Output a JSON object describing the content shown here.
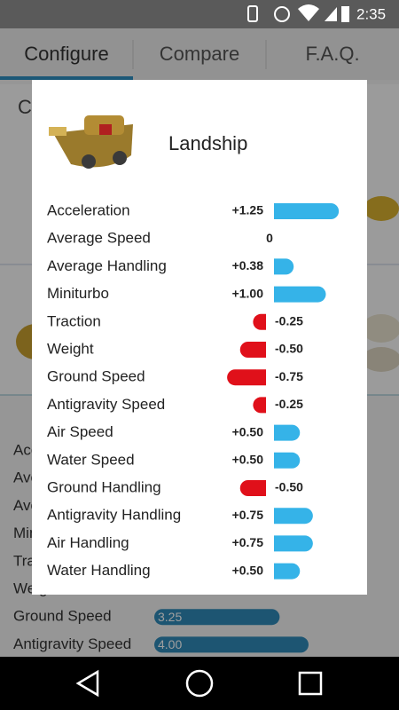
{
  "status_bar": {
    "time": "2:35"
  },
  "tabs": [
    "Configure",
    "Compare",
    "F.A.Q."
  ],
  "background": {
    "card_title": "C",
    "stats": [
      {
        "name": "Acceleration"
      },
      {
        "name": "Average Speed"
      },
      {
        "name": "Average Handling"
      },
      {
        "name": "Miniturbo"
      },
      {
        "name": "Traction"
      },
      {
        "name": "Weight"
      },
      {
        "name": "Ground Speed",
        "value": 3.25,
        "value_label": "3.25"
      },
      {
        "name": "Antigravity Speed",
        "value": 4,
        "value_label": "4.00"
      }
    ]
  },
  "dialog": {
    "title": "Landship",
    "stats": [
      {
        "name": "Acceleration",
        "value": 1.25,
        "value_label": "+1.25"
      },
      {
        "name": "Average Speed",
        "value": 0,
        "value_label": "0"
      },
      {
        "name": "Average Handling",
        "value": 0.38,
        "value_label": "+0.38"
      },
      {
        "name": "Miniturbo",
        "value": 1,
        "value_label": "+1.00"
      },
      {
        "name": "Traction",
        "value": -0.25,
        "value_label": "-0.25"
      },
      {
        "name": "Weight",
        "value": -0.5,
        "value_label": "-0.50"
      },
      {
        "name": "Ground Speed",
        "value": -0.75,
        "value_label": "-0.75"
      },
      {
        "name": "Antigravity Speed",
        "value": -0.25,
        "value_label": "-0.25"
      },
      {
        "name": "Air Speed",
        "value": 0.5,
        "value_label": "+0.50"
      },
      {
        "name": "Water Speed",
        "value": 0.5,
        "value_label": "+0.50"
      },
      {
        "name": "Ground Handling",
        "value": -0.5,
        "value_label": "-0.50"
      },
      {
        "name": "Antigravity Handling",
        "value": 0.75,
        "value_label": "+0.75"
      },
      {
        "name": "Air Handling",
        "value": 0.75,
        "value_label": "+0.75"
      },
      {
        "name": "Water Handling",
        "value": 0.5,
        "value_label": "+0.50"
      }
    ]
  }
}
